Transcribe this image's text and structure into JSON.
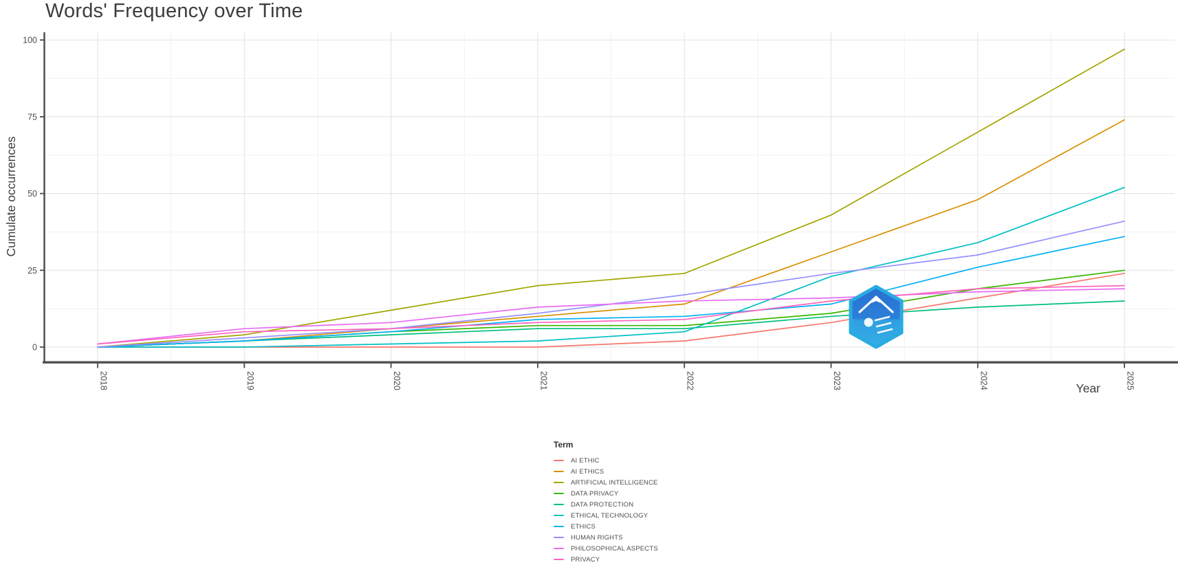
{
  "title": "Words' Frequency over Time",
  "watermark_icon": "blue-hexagon-logo",
  "chart_data": {
    "type": "line",
    "title": "Words' Frequency over Time",
    "xlabel": "Year",
    "ylabel": "Cumulate occurrences",
    "x": [
      2018,
      2019,
      2020,
      2021,
      2022,
      2023,
      2024,
      2025
    ],
    "ylim": [
      0,
      100
    ],
    "yticks": [
      0,
      25,
      50,
      75,
      100
    ],
    "grid": true,
    "legend_title": "Term",
    "legend_position": "bottom",
    "series": [
      {
        "name": "AI ETHIC",
        "color": "#F8766D",
        "values": [
          0,
          0,
          0,
          0,
          2,
          8,
          16,
          24
        ]
      },
      {
        "name": "AI ETHICS",
        "color": "#D89000",
        "values": [
          0,
          2,
          6,
          10,
          14,
          31,
          48,
          74
        ]
      },
      {
        "name": "ARTIFICIAL INTELLIGENCE",
        "color": "#A3A500",
        "values": [
          0,
          4,
          12,
          20,
          24,
          43,
          70,
          97
        ]
      },
      {
        "name": "DATA PRIVACY",
        "color": "#39B600",
        "values": [
          0,
          2,
          5,
          7,
          7,
          11,
          19,
          25
        ]
      },
      {
        "name": "DATA PROTECTION",
        "color": "#00BF7D",
        "values": [
          0,
          2,
          4,
          6,
          6,
          10,
          13,
          15
        ]
      },
      {
        "name": "ETHICAL TECHNOLOGY",
        "color": "#00BFC4",
        "values": [
          0,
          0,
          1,
          2,
          5,
          23,
          34,
          52
        ]
      },
      {
        "name": "ETHICS",
        "color": "#00B0F6",
        "values": [
          0,
          2,
          5,
          9,
          10,
          14,
          26,
          36
        ]
      },
      {
        "name": "HUMAN RIGHTS",
        "color": "#9590FF",
        "values": [
          0,
          3,
          6,
          11,
          17,
          24,
          30,
          41
        ]
      },
      {
        "name": "PHILOSOPHICAL ASPECTS",
        "color": "#E76BF3",
        "values": [
          1,
          6,
          8,
          13,
          15,
          16,
          18,
          19
        ]
      },
      {
        "name": "PRIVACY",
        "color": "#FF62BC",
        "values": [
          1,
          5,
          6,
          8,
          9,
          15,
          19,
          20
        ]
      }
    ]
  }
}
